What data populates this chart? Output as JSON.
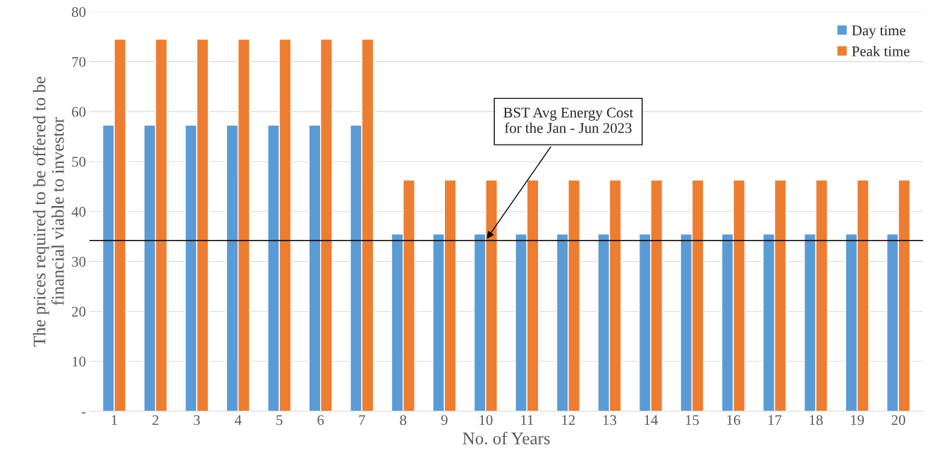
{
  "chart_data": {
    "type": "bar",
    "xlabel": "No. of Years",
    "ylabel": "The prices required to be offered to be\nfinancial viable to investor",
    "categories": [
      "1",
      "2",
      "3",
      "4",
      "5",
      "6",
      "7",
      "8",
      "9",
      "10",
      "11",
      "12",
      "13",
      "14",
      "15",
      "16",
      "17",
      "18",
      "19",
      "20"
    ],
    "series": [
      {
        "name": "Day time",
        "color": "#5b9bd5",
        "values": [
          57.3,
          57.3,
          57.3,
          57.3,
          57.3,
          57.3,
          57.3,
          35.5,
          35.5,
          35.5,
          35.5,
          35.5,
          35.5,
          35.5,
          35.5,
          35.5,
          35.5,
          35.5,
          35.5,
          35.5
        ]
      },
      {
        "name": "Peak time",
        "color": "#ed7d31",
        "values": [
          74.5,
          74.5,
          74.5,
          74.5,
          74.5,
          74.5,
          74.5,
          46.3,
          46.3,
          46.3,
          46.3,
          46.3,
          46.3,
          46.3,
          46.3,
          46.3,
          46.3,
          46.3,
          46.3,
          46.3
        ]
      }
    ],
    "ylim": [
      0,
      80
    ],
    "yticks": [
      {
        "value": 0,
        "label": "-"
      },
      10,
      20,
      30,
      40,
      50,
      60,
      70,
      80
    ],
    "grid": "y",
    "legend": "top right",
    "ref_lines": [
      {
        "axis": "y",
        "value": 34.2,
        "color": "#000000"
      }
    ],
    "annotations": [
      {
        "text": "BST Avg Energy Cost\nfor the Jan - Jun 2023",
        "x": "10",
        "y": 34.2
      }
    ]
  }
}
